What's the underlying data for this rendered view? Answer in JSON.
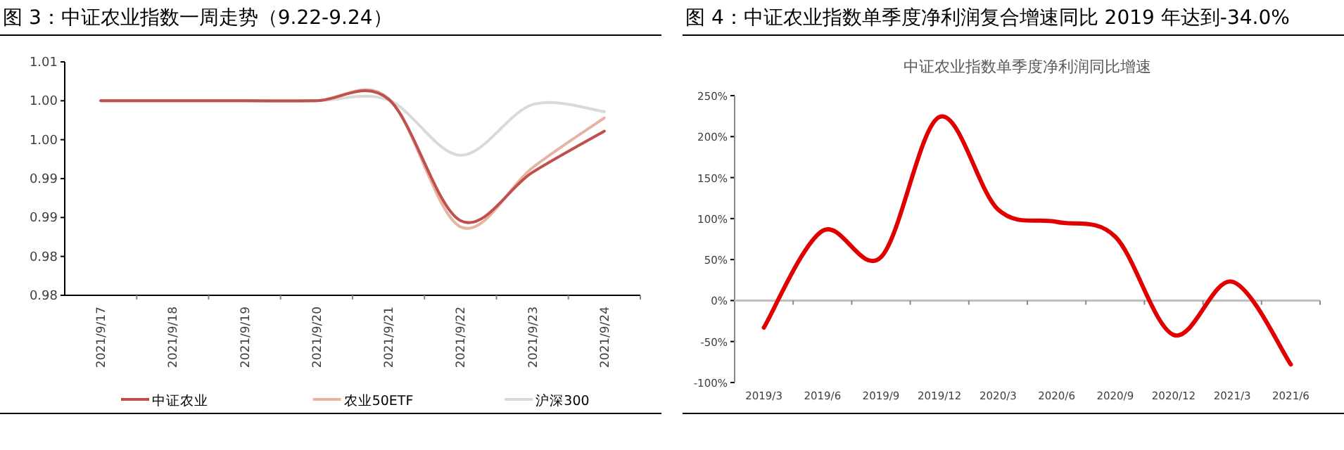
{
  "chart_data": [
    {
      "type": "line",
      "title": "图 3：中证农业指数一周走势（9.22-9.24）",
      "categories": [
        "2021/9/17",
        "2021/9/18",
        "2021/9/19",
        "2021/9/20",
        "2021/9/21",
        "2021/9/22",
        "2021/9/23",
        "2021/9/24"
      ],
      "series": [
        {
          "name": "中证农业",
          "color": "#c0504d",
          "values": [
            1.005,
            1.005,
            1.005,
            1.005,
            1.0052,
            0.9896,
            0.9958,
            1.0011
          ]
        },
        {
          "name": "农业50ETF",
          "color": "#e6b4a2",
          "values": [
            1.005,
            1.005,
            1.005,
            1.005,
            1.0053,
            0.9888,
            0.9964,
            1.0028
          ]
        },
        {
          "name": "沪深300",
          "color": "#d9d9d9",
          "values": [
            1.005,
            1.005,
            1.005,
            1.005,
            1.0051,
            0.998,
            1.0045,
            1.0036
          ]
        }
      ],
      "ylim": [
        0.98,
        1.01
      ],
      "yticks": [
        {
          "value": 0.98,
          "label": "0.98"
        },
        {
          "value": 0.985,
          "label": "0.98"
        },
        {
          "value": 0.99,
          "label": "0.99"
        },
        {
          "value": 0.995,
          "label": "0.99"
        },
        {
          "value": 1.0,
          "label": "1.00"
        },
        {
          "value": 1.005,
          "label": "1.00"
        },
        {
          "value": 1.01,
          "label": "1.01"
        }
      ],
      "legend": "bottom"
    },
    {
      "type": "line",
      "title": "图 4：中证农业指数单季度净利润复合增速同比 2019 年达到-34.0%",
      "subtitle": "中证农业指数单季度净利润同比增速",
      "categories": [
        "2019/3",
        "2019/6",
        "2019/9",
        "2019/12",
        "2020/3",
        "2020/6",
        "2020/9",
        "2020/12",
        "2021/3",
        "2021/6"
      ],
      "values": [
        -33,
        85,
        53,
        224,
        111,
        96,
        78,
        -42,
        23,
        -78
      ],
      "color": "#e00000",
      "ylim": [
        -100,
        250
      ],
      "yticks": [
        {
          "value": -100,
          "label": "-100%"
        },
        {
          "value": -50,
          "label": "-50%"
        },
        {
          "value": 0,
          "label": "0%"
        },
        {
          "value": 50,
          "label": "50%"
        },
        {
          "value": 100,
          "label": "100%"
        },
        {
          "value": 150,
          "label": "150%"
        },
        {
          "value": 200,
          "label": "200%"
        },
        {
          "value": 250,
          "label": "250%"
        }
      ]
    }
  ]
}
